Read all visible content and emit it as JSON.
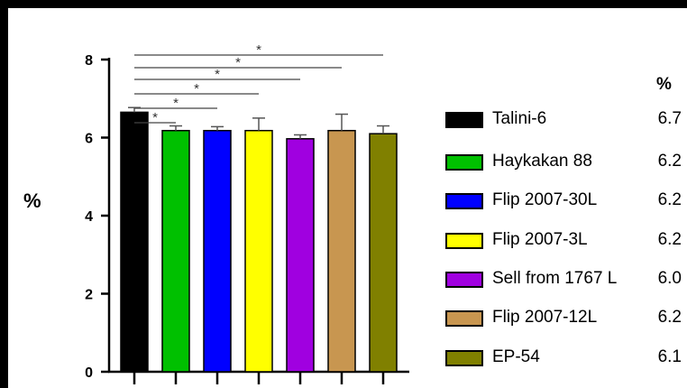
{
  "chart_data": {
    "type": "bar",
    "ylabel": "%",
    "ylim": [
      0,
      8
    ],
    "yticks": [
      "0",
      "2",
      "4",
      "6",
      "8"
    ],
    "categories": [
      "Talini-6",
      "Haykakan 88",
      "Flip 2007-30L",
      "Flip 2007-3L",
      "Sell from 1767 L",
      "Flip 2007-12L",
      "EP-54"
    ],
    "values": [
      6.65,
      6.18,
      6.18,
      6.18,
      5.97,
      6.18,
      6.1
    ],
    "errors": [
      0.12,
      0.12,
      0.1,
      0.32,
      0.1,
      0.42,
      0.2
    ],
    "colors": [
      "#000000",
      "#00c000",
      "#0000ff",
      "#ffff00",
      "#a000e0",
      "#c89650",
      "#808000"
    ],
    "legend_header": "%",
    "legend_values": [
      "6.7",
      "6.2",
      "6.2",
      "6.2",
      "6.0",
      "6.2",
      "6.1"
    ],
    "significance": [
      "*",
      "*",
      "*",
      "*",
      "*",
      "*"
    ]
  }
}
